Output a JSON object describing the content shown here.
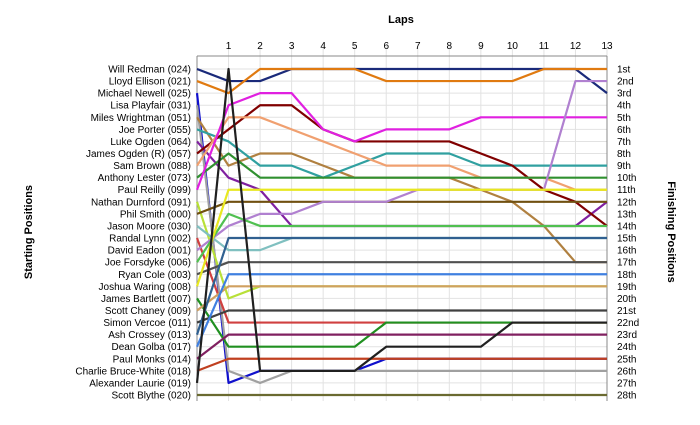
{
  "chart_data": {
    "type": "line",
    "title": "",
    "xlabel": "Laps",
    "ylabel_left": "Starting Positions",
    "ylabel_right": "Finishing Positions",
    "laps": [
      1,
      2,
      3,
      4,
      5,
      6,
      7,
      8,
      9,
      10,
      11,
      12,
      13
    ],
    "lap_labels": [
      "1",
      "2",
      "3",
      "4",
      "5",
      "6",
      "7",
      "8",
      "9",
      "10",
      "11",
      "12",
      "13"
    ],
    "finish_labels": [
      "1st",
      "2nd",
      "3rd",
      "4th",
      "5th",
      "6th",
      "7th",
      "8th",
      "9th",
      "10th",
      "11th",
      "12th",
      "13th",
      "14th",
      "15th",
      "16th",
      "17th",
      "18th",
      "19th",
      "20th",
      "21st",
      "22nd",
      "23rd",
      "24th",
      "25th",
      "26th",
      "27th",
      "28th"
    ],
    "grid": true,
    "series": [
      {
        "name": "Will Redman (024)",
        "color": "#1a2a7a",
        "positions": [
          2,
          2,
          1,
          1,
          1,
          1,
          1,
          1,
          1,
          1,
          1,
          1,
          3
        ]
      },
      {
        "name": "Lloyd Ellison (021)",
        "color": "#e07a10",
        "positions": [
          3,
          1,
          1,
          1,
          1,
          2,
          2,
          2,
          2,
          2,
          1,
          1,
          1
        ]
      },
      {
        "name": "Michael Newell (025)",
        "color": "#1010cc",
        "positions": [
          27,
          26,
          26,
          26,
          26,
          25,
          25,
          25,
          25,
          25,
          25,
          25,
          25
        ]
      },
      {
        "name": "Lisa Playfair (031)",
        "color": "#a0a0a0",
        "positions": [
          26,
          27,
          26,
          26,
          26,
          26,
          26,
          26,
          26,
          26,
          26,
          26,
          26
        ]
      },
      {
        "name": "Miles Wrightman (051)",
        "color": "#b08040",
        "positions": [
          9,
          8,
          8,
          9,
          10,
          10,
          10,
          10,
          11,
          12,
          14,
          17,
          17
        ]
      },
      {
        "name": "Joe Porter (055)",
        "color": "#30a0a0",
        "positions": [
          7,
          9,
          9,
          10,
          9,
          8,
          8,
          8,
          9,
          9,
          9,
          9,
          9
        ]
      },
      {
        "name": "Luke Ogden (064)",
        "color": "#8020a0",
        "positions": [
          10,
          11,
          14,
          14,
          14,
          14,
          14,
          14,
          14,
          14,
          14,
          14,
          12
        ]
      },
      {
        "name": "James Ogden (R) (057)",
        "color": "#800000",
        "positions": [
          6,
          4,
          4,
          6,
          7,
          7,
          7,
          7,
          8,
          9,
          11,
          12,
          14
        ]
      },
      {
        "name": "Sam Brown (088)",
        "color": "#f0a070",
        "positions": [
          5,
          5,
          6,
          7,
          8,
          9,
          9,
          9,
          10,
          10,
          10,
          11,
          11
        ]
      },
      {
        "name": "Anthony Lester (073)",
        "color": "#309030",
        "positions": [
          8,
          10,
          10,
          10,
          10,
          10,
          10,
          10,
          10,
          10,
          10,
          10,
          10
        ]
      },
      {
        "name": "Paul Reilly (099)",
        "color": "#e020e0",
        "positions": [
          4,
          3,
          3,
          6,
          7,
          6,
          6,
          6,
          5,
          5,
          5,
          5,
          5
        ]
      },
      {
        "name": "Nathan Durnford (091)",
        "color": "#b8e038",
        "positions": [
          20,
          19,
          19,
          19,
          19,
          19,
          19,
          19,
          19,
          19,
          19,
          19,
          19
        ]
      },
      {
        "name": "Phil Smith (000)",
        "color": "#705010",
        "positions": [
          12,
          12,
          12,
          12,
          12,
          12,
          12,
          12,
          12,
          12,
          12,
          12,
          12
        ]
      },
      {
        "name": "Jason Moore (030)",
        "color": "#80c0c0",
        "positions": [
          16,
          16,
          15,
          15,
          15,
          15,
          15,
          15,
          15,
          15,
          15,
          15,
          15
        ]
      },
      {
        "name": "Randal Lynn (002)",
        "color": "#d04040",
        "positions": [
          22,
          22,
          22,
          22,
          22,
          22,
          22,
          22,
          22,
          22,
          22,
          22,
          22
        ]
      },
      {
        "name": "David Eadon (001)",
        "color": "#b080d0",
        "positions": [
          14,
          13,
          13,
          12,
          12,
          12,
          11,
          11,
          11,
          11,
          11,
          2,
          2
        ]
      },
      {
        "name": "Joe Forsdyke (006)",
        "color": "#50c050",
        "positions": [
          13,
          14,
          14,
          14,
          14,
          14,
          14,
          14,
          14,
          14,
          14,
          14,
          14
        ]
      },
      {
        "name": "Ryan Cole (003)",
        "color": "#505050",
        "positions": [
          17,
          17,
          17,
          17,
          17,
          17,
          17,
          17,
          17,
          17,
          17,
          17,
          17
        ]
      },
      {
        "name": "Joshua Waring (008)",
        "color": "#e8e820",
        "positions": [
          11,
          11,
          11,
          11,
          11,
          11,
          11,
          11,
          11,
          11,
          11,
          11,
          11
        ]
      },
      {
        "name": "James Bartlett (007)",
        "color": "#209020",
        "positions": [
          24,
          24,
          24,
          24,
          24,
          22,
          22,
          22,
          22,
          22,
          22,
          22,
          22
        ]
      },
      {
        "name": "Scott Chaney (009)",
        "color": "#d0a060",
        "positions": [
          19,
          19,
          19,
          19,
          19,
          19,
          19,
          19,
          19,
          19,
          19,
          19,
          19
        ]
      },
      {
        "name": "Simon Vercoe (011)",
        "color": "#404040",
        "positions": [
          21,
          21,
          21,
          21,
          21,
          21,
          21,
          21,
          21,
          21,
          21,
          21,
          21
        ]
      },
      {
        "name": "Ash Crossey (013)",
        "color": "#306090",
        "positions": [
          15,
          15,
          15,
          15,
          15,
          15,
          15,
          15,
          15,
          15,
          15,
          15,
          15
        ]
      },
      {
        "name": "Dean Golba (017)",
        "color": "#4080e0",
        "positions": [
          18,
          18,
          18,
          18,
          18,
          18,
          18,
          18,
          18,
          18,
          18,
          18,
          18
        ]
      },
      {
        "name": "Paul Monks (014)",
        "color": "#802060",
        "positions": [
          23,
          23,
          23,
          23,
          23,
          23,
          23,
          23,
          23,
          23,
          23,
          23,
          23
        ]
      },
      {
        "name": "Charlie Bruce-White (018)",
        "color": "#c04020",
        "positions": [
          25,
          25,
          25,
          25,
          25,
          25,
          25,
          25,
          25,
          25,
          25,
          25,
          25
        ]
      },
      {
        "name": "Alexander Laurie (019)",
        "color": "#202020",
        "positions": [
          1,
          26,
          26,
          26,
          26,
          24,
          24,
          24,
          24,
          22,
          22,
          22,
          22
        ]
      },
      {
        "name": "Scott Blythe (020)",
        "color": "#6a6a30",
        "positions": [
          28,
          28,
          28,
          28,
          28,
          28,
          28,
          28,
          28,
          28,
          28,
          28,
          28
        ]
      }
    ]
  }
}
